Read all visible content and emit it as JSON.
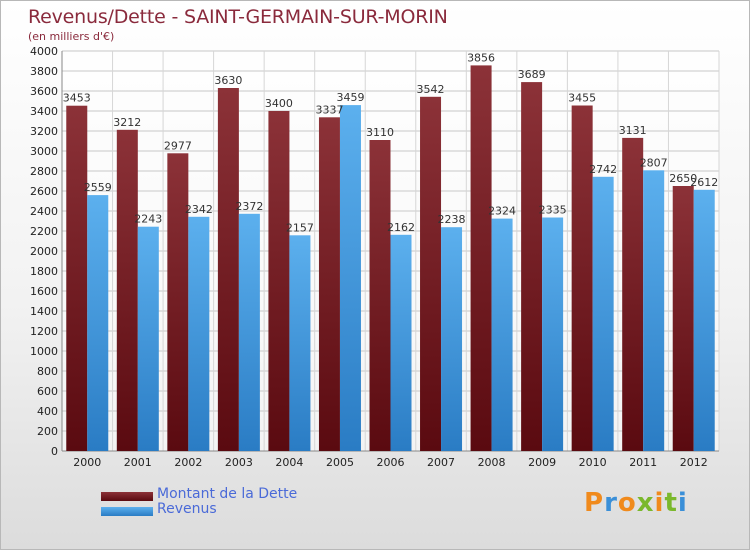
{
  "title": "Revenus/Dette - SAINT-GERMAIN-SUR-MORIN",
  "subtitle": "(en milliers d'€)",
  "logo_text": "Proxiti",
  "colors": {
    "dette": "#7a1e26",
    "revenus": "#3c98de",
    "title": "#8a2a3c",
    "legend_text": "#4a6ad8"
  },
  "chart_data": {
    "type": "bar",
    "categories": [
      "2000",
      "2001",
      "2002",
      "2003",
      "2004",
      "2005",
      "2006",
      "2007",
      "2008",
      "2009",
      "2010",
      "2011",
      "2012"
    ],
    "series": [
      {
        "name": "Montant de la Dette",
        "values": [
          3453,
          3212,
          2977,
          3630,
          3400,
          3337,
          3110,
          3542,
          3856,
          3689,
          3455,
          3131,
          2650
        ]
      },
      {
        "name": "Revenus",
        "values": [
          2559,
          2243,
          2342,
          2372,
          2157,
          3459,
          2162,
          2238,
          2324,
          2335,
          2742,
          2807,
          2612
        ]
      }
    ],
    "ylim": [
      0,
      4000
    ],
    "ytick_step": 200,
    "grid": true,
    "legend_position": "bottom-left"
  }
}
